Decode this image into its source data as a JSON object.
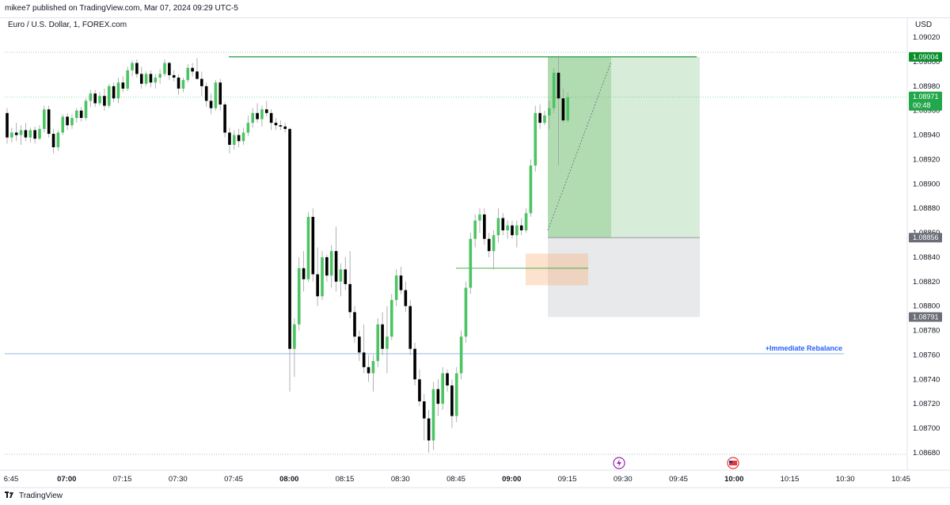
{
  "header": {
    "published_by": "mikee7 published on TradingView.com, Mar 07, 2024 09:29 UTC-5"
  },
  "symbol": {
    "title": "Euro / U.S. Dollar, 1, FOREX.com"
  },
  "price_axis": {
    "currency": "USD",
    "ticks": [
      "1.09020",
      "1.09000",
      "1.08980",
      "1.08960",
      "1.08940",
      "1.08920",
      "1.08900",
      "1.08880",
      "1.08860",
      "1.08840",
      "1.08820",
      "1.08800",
      "1.08780",
      "1.08760",
      "1.08740",
      "1.08720",
      "1.08700",
      "1.08680"
    ],
    "tick_values": [
      1.0902,
      1.09,
      1.0898,
      1.0896,
      1.0894,
      1.0892,
      1.089,
      1.0888,
      1.0886,
      1.0884,
      1.0882,
      1.088,
      1.0878,
      1.0876,
      1.0874,
      1.0872,
      1.087,
      1.0868
    ],
    "tags": [
      {
        "label": "1.09004",
        "value": 1.09004,
        "color": "#0a8f2c"
      },
      {
        "label": "1.08971",
        "sub": "00:48",
        "value": 1.08971,
        "color": "#22a74a"
      },
      {
        "label": "1.08856",
        "value": 1.08856,
        "color": "#6b6e78"
      },
      {
        "label": "1.08791",
        "value": 1.08791,
        "color": "#6b6e78"
      }
    ]
  },
  "time_axis": {
    "ticks": [
      {
        "label": "6:45",
        "bold": false
      },
      {
        "label": "07:00",
        "bold": true
      },
      {
        "label": "07:15",
        "bold": false
      },
      {
        "label": "07:30",
        "bold": false
      },
      {
        "label": "07:45",
        "bold": false
      },
      {
        "label": "08:00",
        "bold": true
      },
      {
        "label": "08:15",
        "bold": false
      },
      {
        "label": "08:30",
        "bold": false
      },
      {
        "label": "08:45",
        "bold": false
      },
      {
        "label": "09:00",
        "bold": true
      },
      {
        "label": "09:15",
        "bold": false
      },
      {
        "label": "09:30",
        "bold": false
      },
      {
        "label": "09:45",
        "bold": false
      },
      {
        "label": "10:00",
        "bold": true
      },
      {
        "label": "10:15",
        "bold": false
      },
      {
        "label": "10:30",
        "bold": false
      },
      {
        "label": "10:45",
        "bold": false
      }
    ]
  },
  "annotations": {
    "rebalance_label": "+Immediate Rebalance",
    "rebalance_price": 1.08761,
    "resistance_price": 1.09004
  },
  "position_tool": {
    "entry": 1.08856,
    "target": 1.09004,
    "stop": 1.08791,
    "profit_color": "#4caf50",
    "loss_color": "#b2b5be"
  },
  "order_block": {
    "top": 1.08843,
    "bottom": 1.08817,
    "color": "#f7a35c"
  },
  "colors": {
    "up": "#4cc463",
    "down": "#000000"
  },
  "footer": {
    "brand": "TradingView",
    "logo": "tv-logo"
  },
  "chart_data": {
    "type": "candlestick",
    "title": "Euro / U.S. Dollar, 1, FOREX.com",
    "ylim": [
      1.08672,
      1.09028
    ],
    "candles": [
      [
        1.08958,
        1.08962,
        1.08933,
        1.08938
      ],
      [
        1.08938,
        1.08946,
        1.08934,
        1.08942
      ],
      [
        1.08942,
        1.0895,
        1.08935,
        1.0894
      ],
      [
        1.0894,
        1.08948,
        1.08932,
        1.08944
      ],
      [
        1.08944,
        1.0895,
        1.08935,
        1.08938
      ],
      [
        1.08938,
        1.08946,
        1.08934,
        1.08944
      ],
      [
        1.08944,
        1.08947,
        1.08933,
        1.08937
      ],
      [
        1.08937,
        1.08948,
        1.08936,
        1.08945
      ],
      [
        1.08945,
        1.08964,
        1.08942,
        1.08961
      ],
      [
        1.08961,
        1.08964,
        1.08938,
        1.08941
      ],
      [
        1.08941,
        1.08945,
        1.08925,
        1.0893
      ],
      [
        1.0893,
        1.08944,
        1.08927,
        1.08942
      ],
      [
        1.08942,
        1.08957,
        1.0894,
        1.08955
      ],
      [
        1.08955,
        1.08958,
        1.08944,
        1.08948
      ],
      [
        1.08948,
        1.08957,
        1.08945,
        1.08954
      ],
      [
        1.08954,
        1.08962,
        1.0895,
        1.0896
      ],
      [
        1.0896,
        1.08963,
        1.08951,
        1.08954
      ],
      [
        1.08954,
        1.0897,
        1.08952,
        1.08968
      ],
      [
        1.08968,
        1.08977,
        1.08963,
        1.08974
      ],
      [
        1.08974,
        1.08977,
        1.08963,
        1.08966
      ],
      [
        1.08966,
        1.08975,
        1.08964,
        1.08972
      ],
      [
        1.08972,
        1.08978,
        1.0896,
        1.08964
      ],
      [
        1.08964,
        1.08982,
        1.08962,
        1.0898
      ],
      [
        1.0898,
        1.08983,
        1.08967,
        1.0897
      ],
      [
        1.0897,
        1.08987,
        1.08966,
        1.08983
      ],
      [
        1.08983,
        1.08988,
        1.08975,
        1.08978
      ],
      [
        1.08978,
        1.08996,
        1.08976,
        1.08993
      ],
      [
        1.08993,
        1.09001,
        1.08988,
        1.08999
      ],
      [
        1.08999,
        1.09002,
        1.08987,
        1.0899
      ],
      [
        1.0899,
        1.08996,
        1.08978,
        1.08982
      ],
      [
        1.08982,
        1.08992,
        1.0898,
        1.0899
      ],
      [
        1.0899,
        1.08993,
        1.08979,
        1.08983
      ],
      [
        1.08983,
        1.0899,
        1.08978,
        1.08987
      ],
      [
        1.08987,
        1.08994,
        1.08982,
        1.0899
      ],
      [
        1.0899,
        1.09002,
        1.08988,
        1.08999
      ],
      [
        1.08999,
        1.09,
        1.08985,
        1.08989
      ],
      [
        1.08989,
        1.08993,
        1.08984,
        1.08987
      ],
      [
        1.08987,
        1.0899,
        1.08973,
        1.08978
      ],
      [
        1.08978,
        1.08987,
        1.08975,
        1.08985
      ],
      [
        1.08985,
        1.08998,
        1.08983,
        1.08995
      ],
      [
        1.08995,
        1.08999,
        1.08988,
        1.08992
      ],
      [
        1.08992,
        1.09003,
        1.08985,
        1.08986
      ],
      [
        1.08986,
        1.08992,
        1.08972,
        1.0898
      ],
      [
        1.0898,
        1.08983,
        1.08963,
        1.08968
      ],
      [
        1.08968,
        1.08974,
        1.08957,
        1.08962
      ],
      [
        1.08962,
        1.08985,
        1.0896,
        1.08983
      ],
      [
        1.08983,
        1.08986,
        1.0896,
        1.08965
      ],
      [
        1.08965,
        1.08967,
        1.08938,
        1.08942
      ],
      [
        1.08942,
        1.08946,
        1.08925,
        1.08932
      ],
      [
        1.08932,
        1.08944,
        1.08928,
        1.0894
      ],
      [
        1.0894,
        1.08945,
        1.0893,
        1.08935
      ],
      [
        1.08935,
        1.08946,
        1.08932,
        1.08942
      ],
      [
        1.08942,
        1.08956,
        1.08939,
        1.0895
      ],
      [
        1.0895,
        1.08962,
        1.08946,
        1.08958
      ],
      [
        1.08958,
        1.08966,
        1.0895,
        1.08953
      ],
      [
        1.08953,
        1.08964,
        1.08947,
        1.08961
      ],
      [
        1.08961,
        1.08968,
        1.08955,
        1.08958
      ],
      [
        1.08958,
        1.08961,
        1.08944,
        1.0895
      ],
      [
        1.0895,
        1.08954,
        1.08944,
        1.08948
      ],
      [
        1.08948,
        1.08952,
        1.08944,
        1.08947
      ],
      [
        1.08947,
        1.0895,
        1.08942,
        1.08945
      ],
      [
        1.08945,
        1.08946,
        1.0873,
        1.08765
      ],
      [
        1.08765,
        1.0879,
        1.08742,
        1.08785
      ],
      [
        1.08785,
        1.0884,
        1.0878,
        1.08831
      ],
      [
        1.08831,
        1.08845,
        1.08812,
        1.08822
      ],
      [
        1.08822,
        1.08877,
        1.0882,
        1.08873
      ],
      [
        1.08873,
        1.0888,
        1.0882,
        1.08826
      ],
      [
        1.08826,
        1.08848,
        1.088,
        1.08808
      ],
      [
        1.08808,
        1.08845,
        1.08805,
        1.0884
      ],
      [
        1.0884,
        1.08842,
        1.0882,
        1.08825
      ],
      [
        1.08825,
        1.0885,
        1.08815,
        1.08845
      ],
      [
        1.08845,
        1.08865,
        1.08812,
        1.0882
      ],
      [
        1.0882,
        1.08835,
        1.08808,
        1.0883
      ],
      [
        1.0883,
        1.0884,
        1.08813,
        1.08818
      ],
      [
        1.08818,
        1.08845,
        1.0879,
        1.08795
      ],
      [
        1.08795,
        1.088,
        1.0877,
        1.08775
      ],
      [
        1.08775,
        1.0878,
        1.08755,
        1.08762
      ],
      [
        1.08762,
        1.08785,
        1.08745,
        1.0875
      ],
      [
        1.0875,
        1.0876,
        1.08738,
        1.08745
      ],
      [
        1.08745,
        1.0876,
        1.0873,
        1.08755
      ],
      [
        1.08755,
        1.0879,
        1.0875,
        1.08785
      ],
      [
        1.08785,
        1.08795,
        1.0876,
        1.08765
      ],
      [
        1.08765,
        1.088,
        1.08745,
        1.08775
      ],
      [
        1.08775,
        1.0881,
        1.08772,
        1.08805
      ],
      [
        1.08805,
        1.0883,
        1.088,
        1.08825
      ],
      [
        1.08825,
        1.08832,
        1.0881,
        1.08813
      ],
      [
        1.08813,
        1.0882,
        1.08795,
        1.088
      ],
      [
        1.088,
        1.08805,
        1.0876,
        1.08765
      ],
      [
        1.08765,
        1.0877,
        1.08735,
        1.0874
      ],
      [
        1.0874,
        1.08748,
        1.08718,
        1.08722
      ],
      [
        1.08722,
        1.08728,
        1.0869,
        1.08708
      ],
      [
        1.08708,
        1.08715,
        1.0868,
        1.0869
      ],
      [
        1.0869,
        1.08738,
        1.08682,
        1.08732
      ],
      [
        1.08732,
        1.0874,
        1.0871,
        1.0872
      ],
      [
        1.0872,
        1.0875,
        1.08715,
        1.08745
      ],
      [
        1.08745,
        1.08748,
        1.0873,
        1.08735
      ],
      [
        1.08735,
        1.0874,
        1.087,
        1.0871
      ],
      [
        1.0871,
        1.0875,
        1.08705,
        1.08745
      ],
      [
        1.08745,
        1.0878,
        1.0874,
        1.08775
      ],
      [
        1.08775,
        1.0882,
        1.0877,
        1.08815
      ],
      [
        1.08815,
        1.0886,
        1.0881,
        1.08855
      ],
      [
        1.08855,
        1.08875,
        1.08848,
        1.0887
      ],
      [
        1.0887,
        1.0888,
        1.0886,
        1.08875
      ],
      [
        1.08875,
        1.0888,
        1.0885,
        1.08855
      ],
      [
        1.08855,
        1.0886,
        1.0884,
        1.08845
      ],
      [
        1.08845,
        1.08862,
        1.0883,
        1.08858
      ],
      [
        1.08858,
        1.0888,
        1.08852,
        1.08872
      ],
      [
        1.08872,
        1.08876,
        1.08858,
        1.08862
      ],
      [
        1.08862,
        1.0887,
        1.08855,
        1.08866
      ],
      [
        1.08866,
        1.0887,
        1.08855,
        1.08858
      ],
      [
        1.08858,
        1.0887,
        1.08848,
        1.08866
      ],
      [
        1.08866,
        1.08872,
        1.08858,
        1.08862
      ],
      [
        1.08862,
        1.0888,
        1.0886,
        1.08876
      ],
      [
        1.08876,
        1.0892,
        1.08873,
        1.08915
      ],
      [
        1.08915,
        1.08964,
        1.0891,
        1.08958
      ],
      [
        1.08958,
        1.08965,
        1.08945,
        1.0895
      ],
      [
        1.0895,
        1.0896,
        1.08948,
        1.08956
      ],
      [
        1.08956,
        1.08968,
        1.08945,
        1.08962
      ],
      [
        1.08962,
        1.08995,
        1.08958,
        1.08991
      ],
      [
        1.08991,
        1.09005,
        1.08915,
        1.0897
      ],
      [
        1.0897,
        1.08978,
        1.0895,
        1.08952
      ],
      [
        1.08952,
        1.08975,
        1.0895,
        1.08971
      ]
    ]
  }
}
